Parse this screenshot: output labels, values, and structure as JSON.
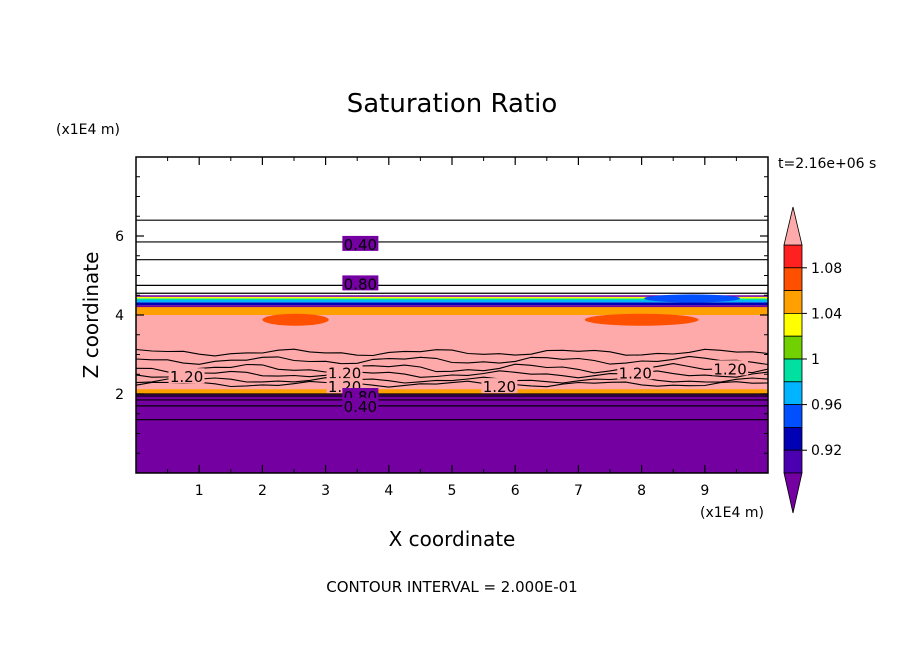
{
  "chart_data": {
    "type": "heatmap",
    "title": "Saturation Ratio",
    "xlabel": "X coordinate",
    "ylabel": "Z coordinate",
    "x_unit": "(x1E4 m)",
    "y_unit": "(x1E4 m)",
    "xlim": [
      0,
      10
    ],
    "ylim": [
      0,
      8
    ],
    "x_ticks": [
      "1",
      "2",
      "3",
      "4",
      "5",
      "6",
      "7",
      "8",
      "9"
    ],
    "y_ticks": [
      "2",
      "4",
      "6"
    ],
    "time_label": "t=2.16e+06 s",
    "footer": "CONTOUR INTERVAL = 2.000E-01",
    "colorbar": {
      "ticks": [
        "0.92",
        "0.96",
        "1",
        "1.04",
        "1.08"
      ],
      "levels": [
        0.9,
        0.92,
        0.94,
        0.96,
        0.98,
        1.0,
        1.02,
        1.04,
        1.06,
        1.08,
        1.1
      ],
      "colors": [
        "#7400a2",
        "#4a00b0",
        "#0000b4",
        "#0050ff",
        "#00b4ff",
        "#00e0a0",
        "#70d000",
        "#ffff00",
        "#ffa000",
        "#ff5000",
        "#ff2020",
        "#ffaaaa"
      ],
      "extend": "both"
    },
    "bands": [
      {
        "z0": 0.0,
        "z1": 4.25,
        "color": "#7400a2"
      },
      {
        "z0": 4.25,
        "z1": 4.32,
        "color": "#0000b4"
      },
      {
        "z0": 4.32,
        "z1": 4.38,
        "color": "#00b4ff"
      },
      {
        "z0": 4.38,
        "z1": 4.42,
        "color": "#00e0a0"
      },
      {
        "z0": 4.42,
        "z1": 4.46,
        "color": "#ffff00"
      },
      {
        "z0": 4.46,
        "z1": 4.5,
        "color": "#7400a2"
      }
    ],
    "pink_layer": {
      "z0": 2.05,
      "z1": 4.0,
      "color": "#ffaaaa"
    },
    "contour_labels": [
      {
        "text": "0.40",
        "x": 3.55,
        "z": 5.8
      },
      {
        "text": "0.80",
        "x": 3.55,
        "z": 4.8
      },
      {
        "text": "1.20",
        "x": 0.8,
        "z": 2.45
      },
      {
        "text": "1.20",
        "x": 3.3,
        "z": 2.55
      },
      {
        "text": "1.20",
        "x": 3.3,
        "z": 2.2
      },
      {
        "text": "1.20",
        "x": 5.75,
        "z": 2.2
      },
      {
        "text": "1.20",
        "x": 7.9,
        "z": 2.55
      },
      {
        "text": "1.20",
        "x": 9.4,
        "z": 2.65
      },
      {
        "text": "0.80",
        "x": 3.55,
        "z": 1.95
      },
      {
        "text": "0.40",
        "x": 3.55,
        "z": 1.7
      }
    ],
    "contour_levels_z": [
      6.4,
      5.85,
      5.4,
      4.75,
      4.55,
      2.0,
      1.95,
      1.85,
      1.7,
      1.35
    ]
  }
}
